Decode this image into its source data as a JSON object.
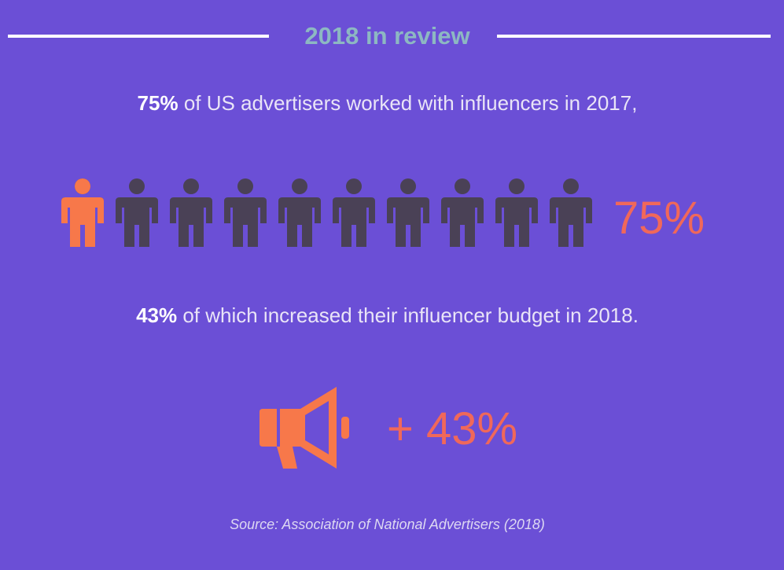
{
  "header": {
    "title": "2018 in review"
  },
  "stat1": {
    "highlight": "75%",
    "text": " of US advertisers worked with influencers in 2017,"
  },
  "stat2": {
    "highlight": "43%",
    "text": " of which increased their influencer budget in 2018."
  },
  "chart_data": [
    {
      "type": "pictograph",
      "icon": "person-icon",
      "total_icons": 10,
      "value_percent": 75,
      "label": "75%",
      "filled_color": "#f7784a",
      "empty_color": "#4a4156"
    },
    {
      "type": "single-value",
      "icon": "megaphone-icon",
      "value_percent": 43,
      "label": "+ 43%",
      "color": "#f0685a"
    }
  ],
  "footer": {
    "source": "Source: Association of National Advertisers (2018)"
  }
}
